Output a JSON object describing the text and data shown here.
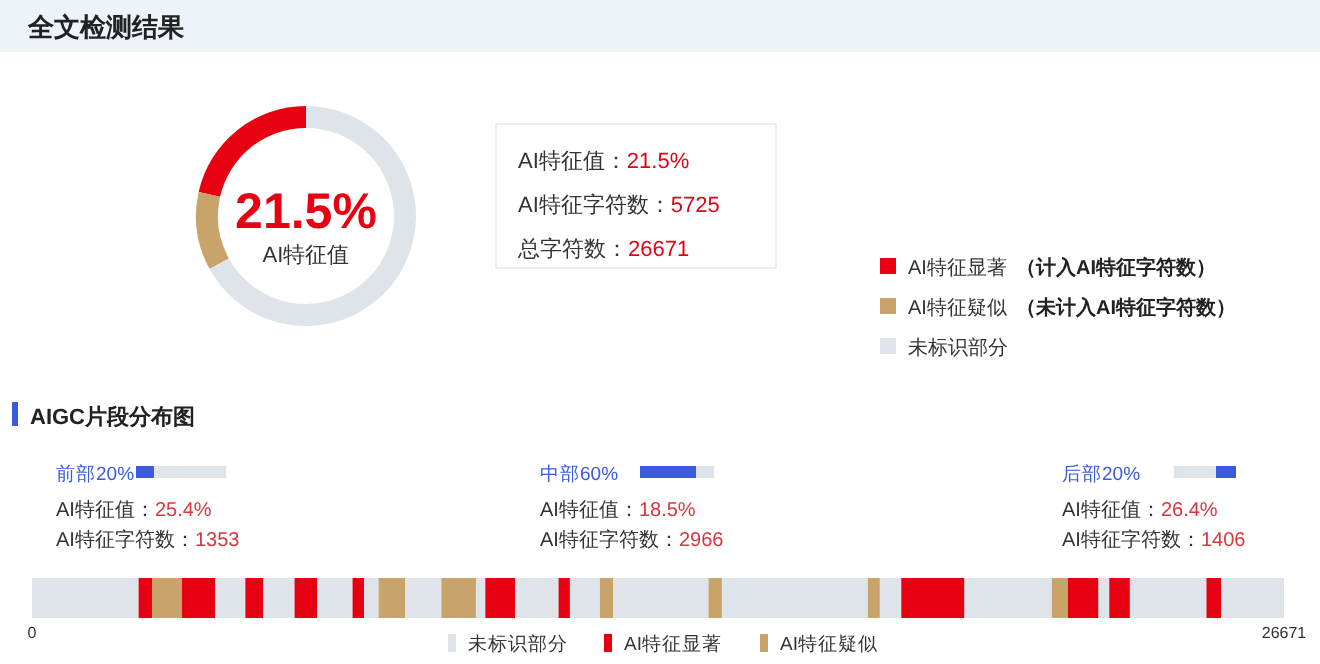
{
  "chart_data": [
    {
      "type": "donut",
      "title": "全文检测结果",
      "categories": [
        "AI特征显著",
        "AI特征疑似",
        "未标识部分"
      ],
      "values": [
        21.5,
        11.5,
        67
      ],
      "colors": [
        "#e60012",
        "#c9a46a",
        "#dfe3ea"
      ],
      "legend": "right",
      "annotations": [
        "21.5%",
        "AI特征值",
        "AI特征值：21.5%",
        "AI特征字符数：5725",
        "总字符数：26671",
        "（计入AI特征字符数）",
        "（未计入AI特征字符数）"
      ]
    },
    {
      "type": "bar",
      "title": "AIGC片段分布图",
      "orientation": "horizontal",
      "stacked": true,
      "categories": [
        null
      ],
      "xlim": [
        0,
        26671
      ],
      "xticks": [
        0,
        26671
      ],
      "tick_labels": "x",
      "legend": "bottom",
      "annotations": [
        "前部20%",
        "AI特征值：25.4%",
        "AI特征字符数：1353",
        "中部60%",
        "AI特征值：18.5%",
        "AI特征字符数：2966",
        "后部20%",
        "AI特征值：26.4%",
        "AI特征字符数：1406"
      ],
      "series": [
        {
          "name": "未标识部分",
          "color": "#dfe3ea",
          "values": [
            2271
          ]
        },
        {
          "name": "AI特征显著",
          "color": "#e60012",
          "values": [
            285
          ]
        },
        {
          "name": "AI特征疑似",
          "color": "#c9a46a",
          "values": [
            639
          ]
        },
        {
          "color": "#e60012",
          "values": [
            711
          ]
        },
        {
          "color": "#dfe3ea",
          "values": [
            639
          ]
        },
        {
          "color": "#e60012",
          "values": [
            384
          ]
        },
        {
          "color": "#dfe3ea",
          "values": [
            664
          ]
        },
        {
          "color": "#e60012",
          "values": [
            486
          ]
        },
        {
          "color": "#dfe3ea",
          "values": [
            750
          ]
        },
        {
          "color": "#e60012",
          "values": [
            243
          ]
        },
        {
          "color": "#dfe3ea",
          "values": [
            311
          ]
        },
        {
          "color": "#c9a46a",
          "values": [
            571
          ]
        },
        {
          "color": "#dfe3ea",
          "values": [
            767
          ]
        },
        {
          "color": "#c9a46a",
          "values": [
            736
          ]
        },
        {
          "color": "#dfe3ea",
          "values": [
            200
          ]
        },
        {
          "color": "#e60012",
          "values": [
            639
          ]
        },
        {
          "color": "#dfe3ea",
          "values": [
            921
          ]
        },
        {
          "color": "#e60012",
          "values": [
            242
          ]
        },
        {
          "color": "#dfe3ea",
          "values": [
            639
          ]
        },
        {
          "color": "#c9a46a",
          "values": [
            286
          ]
        },
        {
          "color": "#dfe3ea",
          "values": [
            2028
          ]
        },
        {
          "color": "#c9a46a",
          "values": [
            285
          ]
        },
        {
          "color": "#dfe3ea",
          "values": [
            3110
          ]
        },
        {
          "color": "#c9a46a",
          "values": [
            255
          ]
        },
        {
          "color": "#dfe3ea",
          "values": [
            456
          ]
        },
        {
          "color": "#e60012",
          "values": [
            1346
          ]
        },
        {
          "color": "#dfe3ea",
          "values": [
            1862
          ]
        },
        {
          "color": "#c9a46a",
          "values": [
            341
          ]
        },
        {
          "color": "#e60012",
          "values": [
            652
          ]
        },
        {
          "color": "#dfe3ea",
          "values": [
            230
          ]
        },
        {
          "color": "#e60012",
          "values": [
            439
          ]
        },
        {
          "color": "#dfe3ea",
          "values": [
            1631
          ]
        },
        {
          "color": "#e60012",
          "values": [
            315
          ]
        },
        {
          "color": "#dfe3ea",
          "values": [
            1337
          ]
        }
      ]
    }
  ]
}
